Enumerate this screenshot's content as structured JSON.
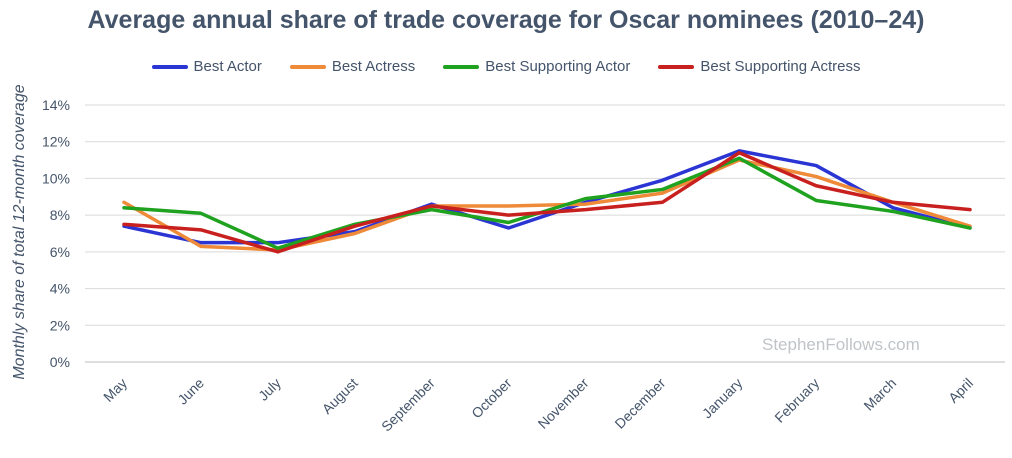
{
  "chart_data": {
    "type": "line",
    "title": "Average annual share of trade coverage for Oscar nominees (2010–24)",
    "ylabel": "Monthly share of total 12-month coverage",
    "xlabel": "",
    "ylim": [
      0,
      14
    ],
    "yticks": [
      "0%",
      "2%",
      "4%",
      "6%",
      "8%",
      "10%",
      "12%",
      "14%"
    ],
    "grid": true,
    "legend_position": "top-center",
    "categories": [
      "May",
      "June",
      "July",
      "August",
      "September",
      "October",
      "November",
      "December",
      "January",
      "February",
      "March",
      "April"
    ],
    "series": [
      {
        "name": "Best Actor",
        "color": "#2a35d4",
        "values": [
          7.4,
          6.5,
          6.5,
          7.1,
          8.6,
          7.3,
          8.7,
          9.9,
          11.5,
          10.7,
          8.4,
          7.3
        ]
      },
      {
        "name": "Best Actress",
        "color": "#ee8a38",
        "values": [
          8.7,
          6.3,
          6.1,
          7.0,
          8.5,
          8.5,
          8.6,
          9.2,
          11.0,
          10.1,
          8.7,
          7.4
        ]
      },
      {
        "name": "Best Supporting Actor",
        "color": "#1fa21f",
        "values": [
          8.4,
          8.1,
          6.2,
          7.5,
          8.3,
          7.6,
          8.9,
          9.4,
          11.1,
          8.8,
          8.2,
          7.3
        ]
      },
      {
        "name": "Best Supporting Actress",
        "color": "#c8201e",
        "values": [
          7.5,
          7.2,
          6.0,
          7.4,
          8.5,
          8.0,
          8.3,
          8.7,
          11.4,
          9.6,
          8.7,
          8.3
        ]
      }
    ],
    "annotations": [
      "StephenFollows.com"
    ]
  }
}
